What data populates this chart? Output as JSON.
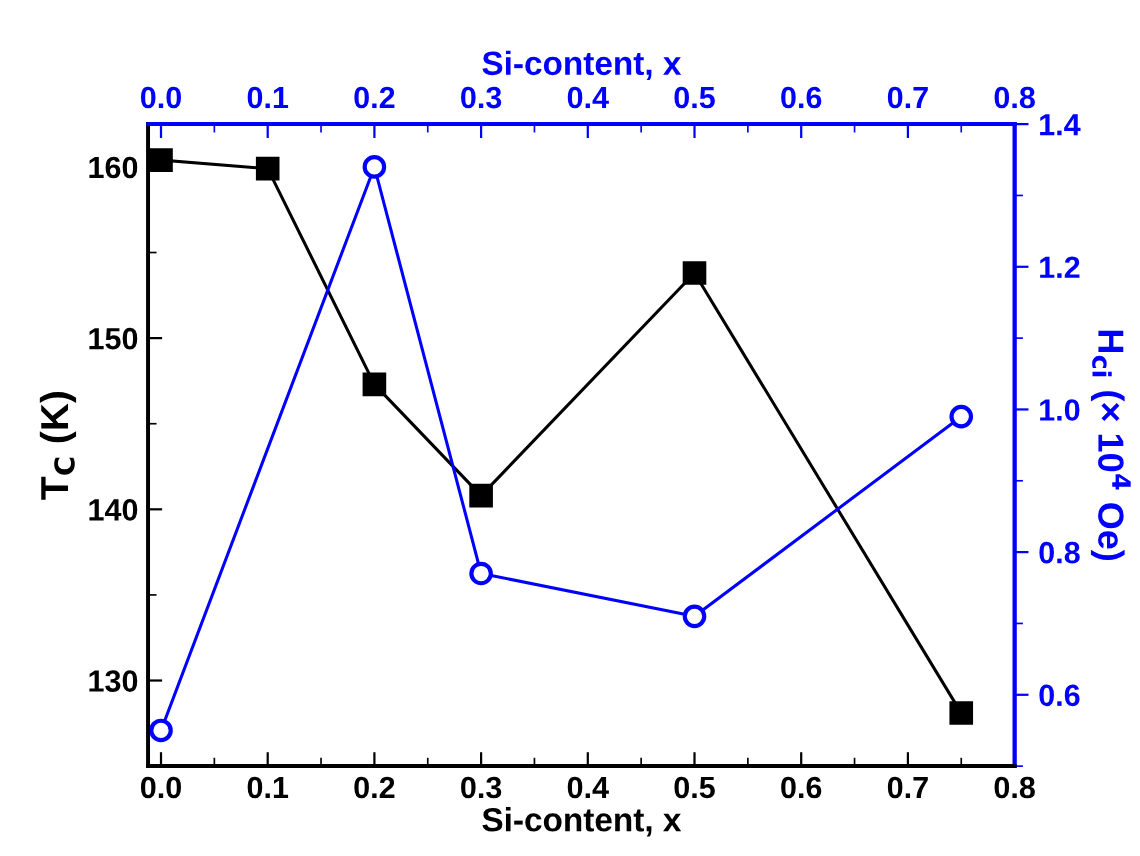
{
  "chart_data": {
    "type": "line",
    "xlabel": "Si-content, x",
    "x2label": "Si-content, x",
    "ylabel": "T$_{C}$ (K)",
    "y2label": "H$_{ci}$ (× 10$^{4}$ Oe)",
    "x": [
      0.0,
      0.1,
      0.2,
      0.3,
      0.5,
      0.75
    ],
    "series": [
      {
        "color": "#000000",
        "marker": "square",
        "values": [
          160.4,
          159.9,
          147.3,
          140.8,
          153.8,
          128.1
        ]
      },
      {
        "color": "#0000ff",
        "marker": "circle",
        "axis": "y2",
        "x": [
          0.0,
          0.2,
          0.3,
          0.5,
          0.75
        ],
        "values": [
          0.55,
          1.34,
          0.77,
          0.71,
          0.99
        ]
      }
    ],
    "xlim": [
      -0.012,
      0.8
    ],
    "xticks": [
      {
        "value": 0,
        "label": "0.0"
      },
      0.1,
      0.2,
      0.3,
      0.4,
      0.5,
      0.6,
      0.7,
      0.8
    ],
    "x2lim": [
      -0.012,
      0.8
    ],
    "x2ticks": [
      {
        "value": 0,
        "label": "0.0"
      },
      0.1,
      0.2,
      0.3,
      0.4,
      0.5,
      0.6,
      0.7,
      0.8
    ],
    "ylim": [
      125,
      162.5
    ],
    "yticks": [
      130,
      140,
      150,
      160
    ],
    "y2lim": [
      0.5,
      1.4
    ],
    "y2ticks": [
      0.6,
      0.8,
      {
        "value": 1,
        "label": "1.0"
      },
      1.2,
      1.4
    ],
    "grid": false,
    "legend": false,
    "line_style": "solid"
  }
}
